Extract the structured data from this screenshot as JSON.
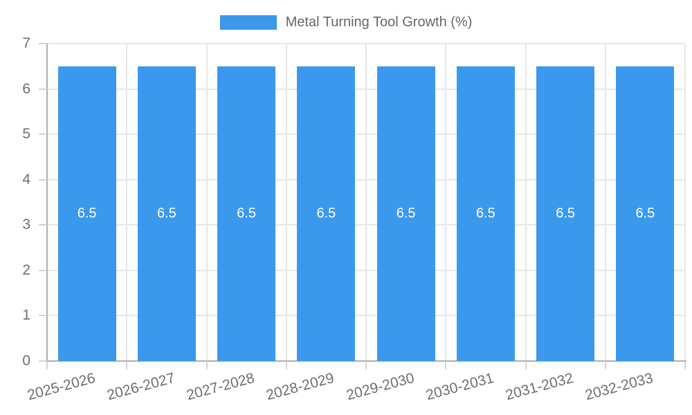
{
  "colors": {
    "background": "#ffffff",
    "bar": "#3a99ec",
    "bar_label": "#ffffff",
    "grid": "#e7e7e7",
    "axis_line": "#aeaeae",
    "tick_mark": "#d2d2d2",
    "axis_text": "#6e6e6e",
    "legend_text": "#666666"
  },
  "legend": {
    "position": "top",
    "items": [
      {
        "label": "Metal Turning Tool Growth (%)",
        "color": "#3a99ec"
      }
    ]
  },
  "chart_data": {
    "type": "bar",
    "title": "Metal Turning Tool Growth (%)",
    "categories": [
      "2025-2026",
      "2026-2027",
      "2027-2028",
      "2028-2029",
      "2029-2030",
      "2030-2031",
      "2031-2032",
      "2032-2033"
    ],
    "series": [
      {
        "name": "Metal Turning Tool Growth (%)",
        "color": "#3a99ec",
        "values": [
          6.5,
          6.5,
          6.5,
          6.5,
          6.5,
          6.5,
          6.5,
          6.5
        ]
      }
    ],
    "data_labels": {
      "show": true,
      "decimals": 1,
      "color": "#ffffff",
      "position": "center"
    },
    "xlabel": "",
    "ylabel": "",
    "ylim": [
      0,
      7
    ],
    "yticks": [
      0,
      1,
      2,
      3,
      4,
      5,
      6,
      7
    ],
    "grid": true,
    "legend_position": "top",
    "x_tick_rotation_deg": -15
  }
}
